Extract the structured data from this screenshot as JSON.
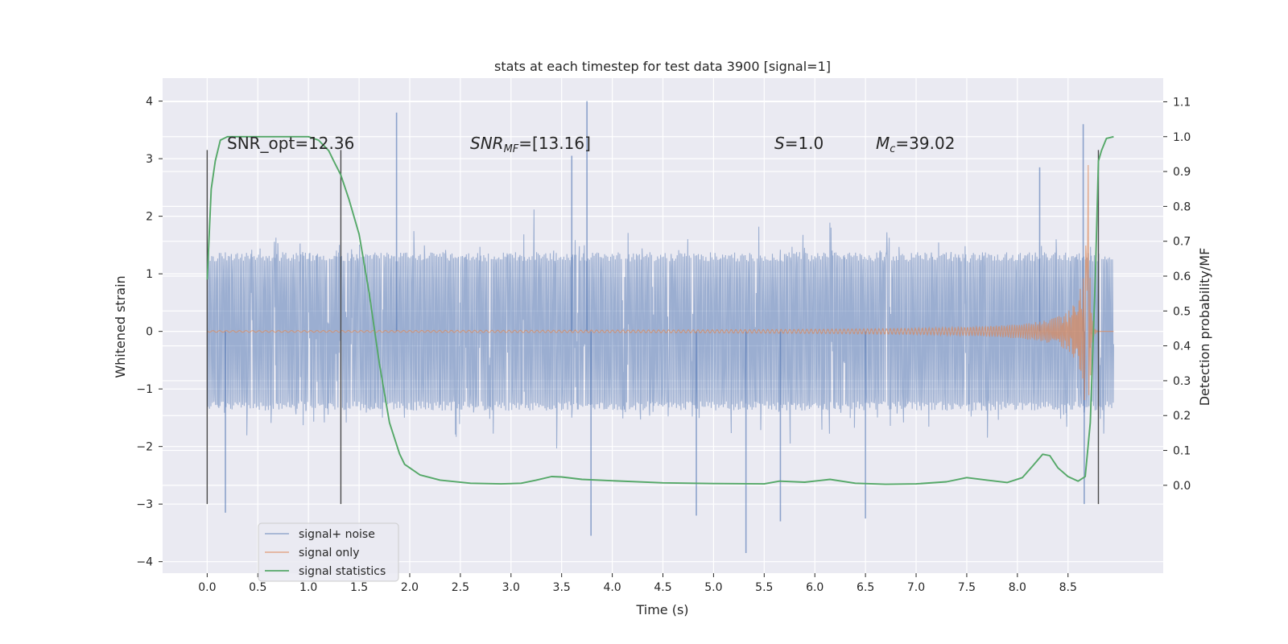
{
  "chart_data": {
    "type": "line",
    "title": "stats at each timestep for test data 3900 [signal=1]",
    "xlabel": "Time (s)",
    "ylabel": "Whitened strain",
    "y2label": "Detection probability/MF",
    "xlim": [
      -0.44,
      9.44
    ],
    "ylim": [
      -4.2,
      4.4
    ],
    "y2lim": [
      -0.252,
      1.168
    ],
    "xticks": [
      0.0,
      0.5,
      1.0,
      1.5,
      2.0,
      2.5,
      3.0,
      3.5,
      4.0,
      4.5,
      5.0,
      5.5,
      6.0,
      6.5,
      7.0,
      7.5,
      8.0,
      8.5
    ],
    "xtick_labels": [
      "0.0",
      "0.5",
      "1.0",
      "1.5",
      "2.0",
      "2.5",
      "3.0",
      "3.5",
      "4.0",
      "4.5",
      "5.0",
      "5.5",
      "6.0",
      "6.5",
      "7.0",
      "7.5",
      "8.0",
      "8.5"
    ],
    "yticks": [
      4,
      3,
      2,
      1,
      0,
      -1,
      -2,
      -3,
      -4
    ],
    "ytick_labels": [
      "4",
      "3",
      "2",
      "1",
      "0",
      "−1",
      "−2",
      "−3",
      "−4"
    ],
    "y2ticks": [
      1.1,
      1.0,
      0.9,
      0.8,
      0.7,
      0.6,
      0.5,
      0.4,
      0.3,
      0.2,
      0.1,
      0.0
    ],
    "y2tick_labels": [
      "1.1",
      "1.0",
      "0.9",
      "0.8",
      "0.7",
      "0.6",
      "0.5",
      "0.4",
      "0.3",
      "0.2",
      "0.1",
      "0.0"
    ],
    "grid": true,
    "legend_position": "bottom-left",
    "annotations": {
      "snr_opt": "SNR_opt=12.36",
      "snr_mf_base": "SNR",
      "snr_mf_sub": "MF",
      "snr_mf_val": "=[13.16]",
      "s_base": "S",
      "s_val": "=1.0",
      "mc_base": "M",
      "mc_sub": "c",
      "mc_val": "=39.02"
    },
    "vlines": [
      0.0,
      1.32,
      8.8
    ],
    "vline_range": [
      -3.0,
      3.15
    ],
    "series": [
      {
        "name": "signal+ noise",
        "color": "#4c72b0",
        "axis": "left",
        "t_range": [
          0.0,
          8.95
        ],
        "envelope": 1.35,
        "peaks": [
          {
            "t": 1.87,
            "v": 3.8
          },
          {
            "t": 3.75,
            "v": 4.0
          },
          {
            "t": 3.6,
            "v": 3.05
          },
          {
            "t": 8.65,
            "v": 3.6
          },
          {
            "t": 8.22,
            "v": 2.85
          },
          {
            "t": 0.18,
            "v": -3.15
          },
          {
            "t": 3.79,
            "v": -3.55
          },
          {
            "t": 5.32,
            "v": -3.85
          },
          {
            "t": 4.83,
            "v": -3.2
          },
          {
            "t": 5.66,
            "v": -3.3
          },
          {
            "t": 6.5,
            "v": -3.25
          },
          {
            "t": 8.66,
            "v": -3.0
          }
        ]
      },
      {
        "name": "signal only",
        "color": "#dd8452",
        "axis": "left",
        "chirp_end": 8.7,
        "peak_amplitude": 3.1
      },
      {
        "name": "signal statistics",
        "color": "#55a868",
        "axis": "right",
        "x": [
          0.0,
          0.04,
          0.08,
          0.13,
          0.2,
          0.3,
          0.5,
          0.8,
          1.0,
          1.1,
          1.2,
          1.25,
          1.32,
          1.4,
          1.5,
          1.6,
          1.7,
          1.8,
          1.9,
          1.95,
          2.0,
          2.1,
          2.3,
          2.6,
          2.9,
          3.1,
          3.25,
          3.4,
          3.5,
          3.7,
          4.0,
          4.5,
          5.0,
          5.5,
          5.65,
          5.9,
          6.15,
          6.4,
          6.7,
          7.0,
          7.3,
          7.5,
          7.7,
          7.9,
          8.05,
          8.15,
          8.25,
          8.32,
          8.4,
          8.5,
          8.6,
          8.67,
          8.72,
          8.77,
          8.8,
          8.83,
          8.88,
          8.95
        ],
        "values": [
          0.59,
          0.85,
          0.93,
          0.99,
          1.0,
          1.0,
          1.0,
          1.0,
          1.0,
          0.99,
          0.96,
          0.93,
          0.89,
          0.82,
          0.72,
          0.55,
          0.35,
          0.18,
          0.09,
          0.06,
          0.05,
          0.03,
          0.015,
          0.006,
          0.004,
          0.006,
          0.015,
          0.025,
          0.024,
          0.017,
          0.013,
          0.007,
          0.005,
          0.004,
          0.012,
          0.009,
          0.017,
          0.006,
          0.003,
          0.004,
          0.01,
          0.022,
          0.015,
          0.008,
          0.022,
          0.055,
          0.089,
          0.085,
          0.05,
          0.025,
          0.012,
          0.025,
          0.18,
          0.6,
          0.93,
          0.96,
          0.995,
          1.0
        ]
      }
    ]
  }
}
